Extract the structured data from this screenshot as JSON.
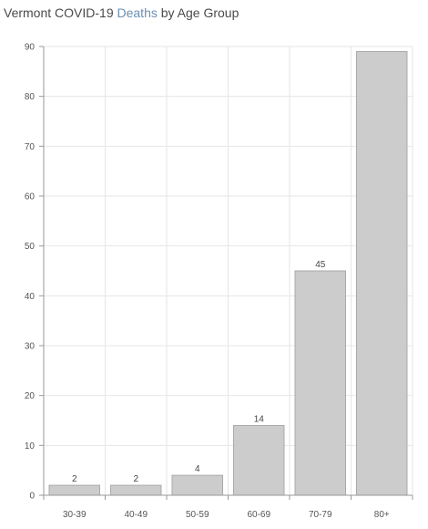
{
  "title": {
    "prefix": "Vermont COVID-19 ",
    "highlight": "Deaths",
    "suffix": " by Age Group"
  },
  "colors": {
    "bar_fill": "#cccccc",
    "bar_stroke": "#a9a9a9",
    "grid": "#e6e6e6",
    "axis": "#999999",
    "title_highlight": "#6b8fb3"
  },
  "chart_data": {
    "type": "bar",
    "title": "Vermont COVID-19 Deaths by Age Group",
    "categories": [
      "30-39",
      "40-49",
      "50-59",
      "60-69",
      "70-79",
      "80+"
    ],
    "values": [
      2,
      2,
      4,
      14,
      45,
      89
    ],
    "data_labels": [
      "2",
      "2",
      "4",
      "14",
      "45",
      ""
    ],
    "xlabel": "",
    "ylabel": "",
    "ylim": [
      0,
      90
    ],
    "yticks": [
      0,
      10,
      20,
      30,
      40,
      50,
      60,
      70,
      80,
      90
    ],
    "grid": true,
    "legend": "none"
  }
}
